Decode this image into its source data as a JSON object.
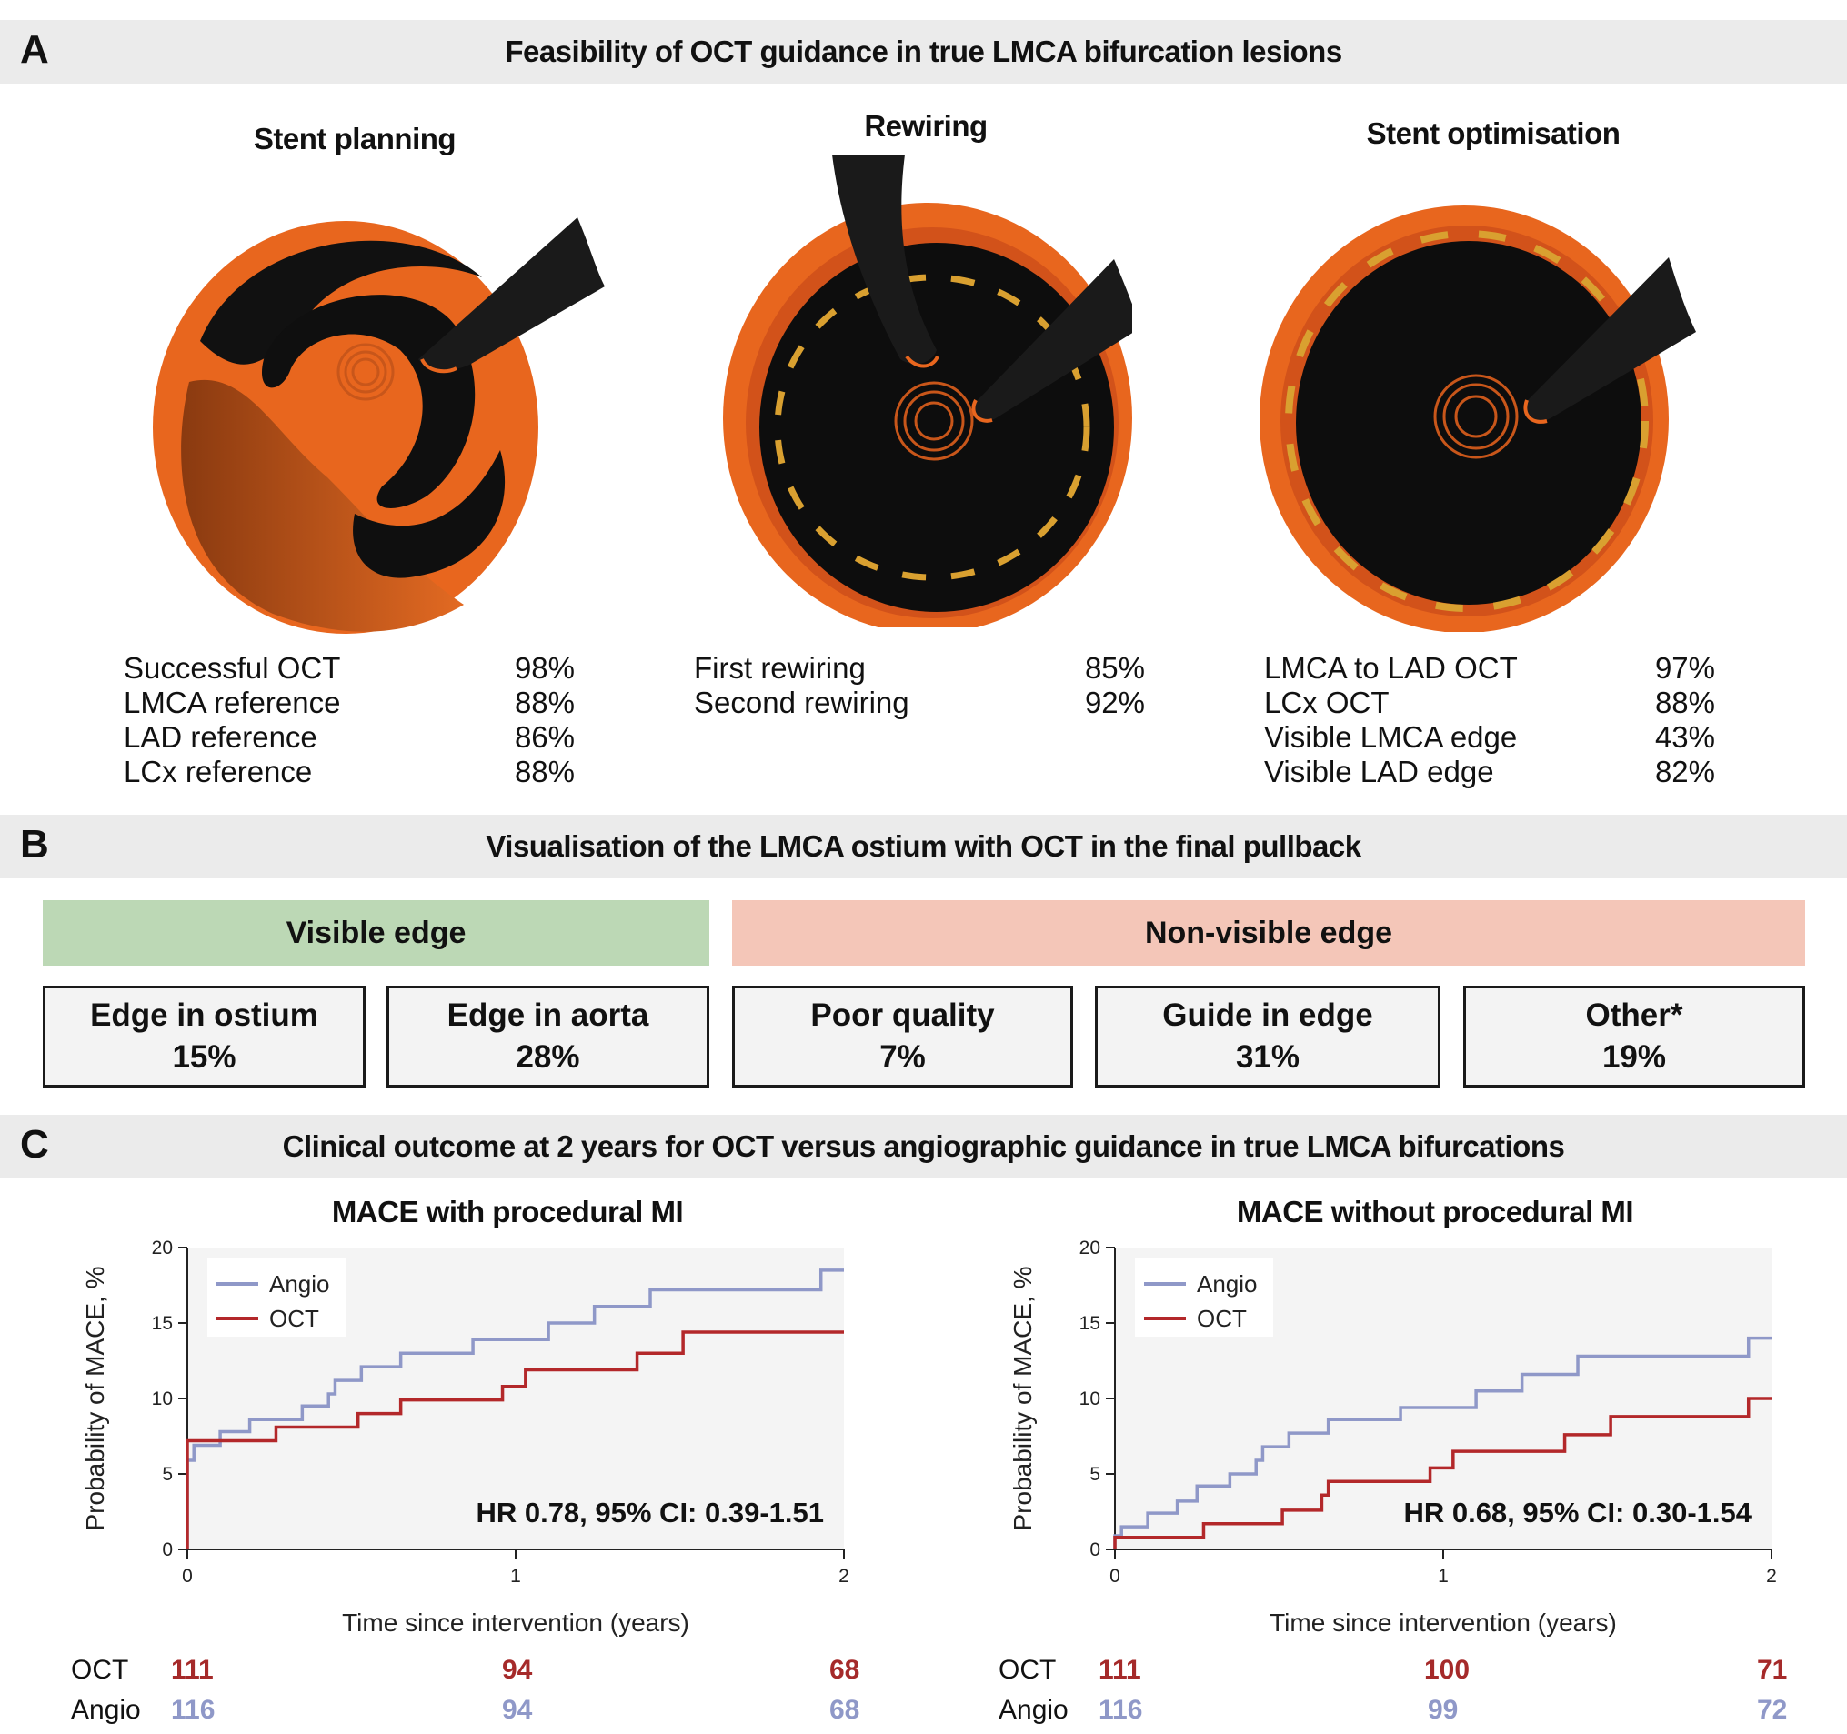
{
  "panel_a": {
    "letter": "A",
    "title": "Feasibility of OCT guidance in true LMCA bifurcation lesions",
    "columns": [
      {
        "title": "Stent planning",
        "rows": [
          {
            "label": "Successful OCT",
            "value": "98%"
          },
          {
            "label": "LMCA reference",
            "value": "88%"
          },
          {
            "label": "LAD reference",
            "value": "86%"
          },
          {
            "label": "LCx reference",
            "value": "88%"
          }
        ]
      },
      {
        "title": "Rewiring",
        "rows": [
          {
            "label": "First rewiring",
            "value": "85%"
          },
          {
            "label": "Second rewiring",
            "value": "92%"
          }
        ]
      },
      {
        "title": "Stent optimisation",
        "rows": [
          {
            "label": "LMCA to LAD OCT",
            "value": "97%"
          },
          {
            "label": "LCx OCT",
            "value": "88%"
          },
          {
            "label": "Visible LMCA edge",
            "value": "43%"
          },
          {
            "label": "Visible LAD edge",
            "value": "82%"
          }
        ]
      }
    ],
    "colors": {
      "vessel": "#e8661e",
      "vessel_dark": "#c84f10",
      "lumen": "#0c0c0c",
      "stent": "#d9a030"
    }
  },
  "panel_b": {
    "letter": "B",
    "title": "Visualisation of the LMCA ostium with OCT in the final pullback",
    "visible": {
      "label": "Visible edge",
      "color": "#bcd8b5"
    },
    "nonvisible": {
      "label": "Non-visible edge",
      "color": "#f4c6b8"
    },
    "boxes": [
      {
        "label": "Edge in ostium",
        "value": "15%"
      },
      {
        "label": "Edge in aorta",
        "value": "28%"
      },
      {
        "label": "Poor quality",
        "value": "7%"
      },
      {
        "label": "Guide in edge",
        "value": "31%"
      },
      {
        "label": "Other*",
        "value": "19%"
      }
    ]
  },
  "panel_c": {
    "letter": "C",
    "title": "Clinical outcome at 2 years for OCT versus angiographic guidance in true LMCA bifurcations"
  },
  "chart_data": [
    {
      "type": "line",
      "title": "MACE with procedural MI",
      "xlabel": "Time since intervention (years)",
      "ylabel": "Probability of MACE, %",
      "xlim": [
        0,
        2
      ],
      "ylim": [
        0,
        20
      ],
      "xticks": [
        "0",
        "1",
        "2"
      ],
      "yticks": [
        "0",
        "5",
        "10",
        "15",
        "20"
      ],
      "legend_position": "top-left",
      "annotation": "HR 0.78, 95% CI: 0.39-1.51",
      "series": [
        {
          "name": "Angio",
          "color": "#8f98c8",
          "points": [
            [
              0,
              0
            ],
            [
              0,
              5.9
            ],
            [
              0.02,
              6.9
            ],
            [
              0.1,
              7.8
            ],
            [
              0.19,
              8.6
            ],
            [
              0.35,
              9.5
            ],
            [
              0.43,
              10.3
            ],
            [
              0.45,
              11.2
            ],
            [
              0.53,
              12.1
            ],
            [
              0.65,
              13.0
            ],
            [
              0.87,
              13.9
            ],
            [
              1.1,
              15.0
            ],
            [
              1.24,
              16.1
            ],
            [
              1.41,
              17.2
            ],
            [
              1.93,
              18.5
            ],
            [
              2.0,
              18.5
            ]
          ]
        },
        {
          "name": "OCT",
          "color": "#b3282a",
          "points": [
            [
              0,
              0
            ],
            [
              0,
              7.2
            ],
            [
              0.27,
              8.1
            ],
            [
              0.52,
              9.0
            ],
            [
              0.65,
              9.9
            ],
            [
              0.96,
              10.8
            ],
            [
              1.03,
              11.9
            ],
            [
              1.37,
              13.0
            ],
            [
              1.51,
              14.4
            ],
            [
              2.0,
              14.4
            ]
          ]
        }
      ],
      "risk_table": {
        "times": [
          "0",
          "1",
          "2"
        ],
        "OCT": [
          "111",
          "94",
          "68"
        ],
        "Angio": [
          "116",
          "94",
          "68"
        ]
      }
    },
    {
      "type": "line",
      "title": "MACE without procedural MI",
      "xlabel": "Time since intervention (years)",
      "ylabel": "Probability of MACE, %",
      "xlim": [
        0,
        2
      ],
      "ylim": [
        0,
        20
      ],
      "xticks": [
        "0",
        "1",
        "2"
      ],
      "yticks": [
        "0",
        "5",
        "10",
        "15",
        "20"
      ],
      "legend_position": "top-left",
      "annotation": "HR 0.68, 95% CI: 0.30-1.54",
      "series": [
        {
          "name": "Angio",
          "color": "#8f98c8",
          "points": [
            [
              0,
              0
            ],
            [
              0,
              0.9
            ],
            [
              0.02,
              1.5
            ],
            [
              0.1,
              2.4
            ],
            [
              0.19,
              3.2
            ],
            [
              0.25,
              4.2
            ],
            [
              0.35,
              5.0
            ],
            [
              0.43,
              5.9
            ],
            [
              0.45,
              6.8
            ],
            [
              0.53,
              7.7
            ],
            [
              0.65,
              8.6
            ],
            [
              0.87,
              9.4
            ],
            [
              1.1,
              10.5
            ],
            [
              1.24,
              11.6
            ],
            [
              1.41,
              12.8
            ],
            [
              1.93,
              14.0
            ],
            [
              2.0,
              14.0
            ]
          ]
        },
        {
          "name": "OCT",
          "color": "#b3282a",
          "points": [
            [
              0,
              0
            ],
            [
              0,
              0.8
            ],
            [
              0.27,
              1.7
            ],
            [
              0.51,
              2.6
            ],
            [
              0.63,
              3.6
            ],
            [
              0.65,
              4.5
            ],
            [
              0.96,
              5.4
            ],
            [
              1.03,
              6.5
            ],
            [
              1.37,
              7.6
            ],
            [
              1.51,
              8.8
            ],
            [
              1.93,
              10.0
            ],
            [
              2.0,
              10.0
            ]
          ]
        }
      ],
      "risk_table": {
        "times": [
          "0",
          "1",
          "2"
        ],
        "OCT": [
          "111",
          "100",
          "71"
        ],
        "Angio": [
          "116",
          "99",
          "72"
        ]
      }
    }
  ]
}
